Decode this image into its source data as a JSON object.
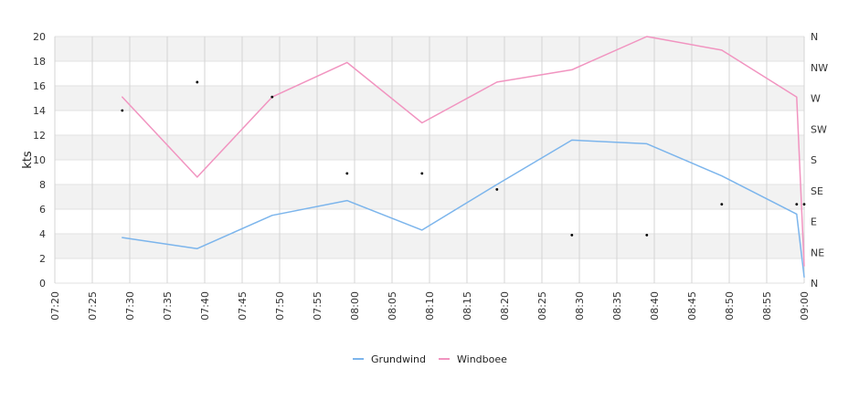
{
  "chart_data": {
    "type": "line",
    "title": "",
    "xlabel": "",
    "ylabel": "kts",
    "ylim": [
      0,
      20
    ],
    "x_ticks": [
      "07:20",
      "07:25",
      "07:30",
      "07:35",
      "07:40",
      "07:45",
      "07:50",
      "07:55",
      "08:00",
      "08:05",
      "08:10",
      "08:15",
      "08:20",
      "08:25",
      "08:30",
      "08:35",
      "08:40",
      "08:45",
      "08:50",
      "08:55",
      "09:00"
    ],
    "y_ticks": [
      0,
      2,
      4,
      6,
      8,
      10,
      12,
      14,
      16,
      18,
      20
    ],
    "direction_ticks": [
      "N",
      "NE",
      "E",
      "SE",
      "S",
      "SW",
      "W",
      "NW",
      "N"
    ],
    "grid": true,
    "legend_position": "bottom",
    "series": [
      {
        "name": "Grundwind",
        "color": "#7cb5ec",
        "x": [
          "07:29",
          "07:39",
          "07:49",
          "07:59",
          "08:09",
          "08:19",
          "08:29",
          "08:39",
          "08:49",
          "08:59",
          "09:00"
        ],
        "values": [
          3.7,
          2.8,
          5.5,
          6.7,
          4.3,
          8.0,
          11.6,
          11.3,
          8.7,
          5.6,
          0.5
        ]
      },
      {
        "name": "Windboee",
        "color": "#f194c0",
        "x": [
          "07:29",
          "07:39",
          "07:49",
          "07:59",
          "08:09",
          "08:19",
          "08:29",
          "08:39",
          "08:49",
          "08:59",
          "09:00"
        ],
        "values": [
          15.1,
          8.6,
          15.1,
          17.9,
          13.0,
          16.3,
          17.3,
          20.0,
          18.9,
          15.1,
          1.4
        ]
      },
      {
        "name": "",
        "type": "scatter",
        "color": "#000000",
        "axis": "direction",
        "x": [
          "07:29",
          "07:39",
          "07:49",
          "07:59",
          "08:09",
          "08:19",
          "08:29",
          "08:39",
          "08:49",
          "08:59",
          "09:00"
        ],
        "values": [
          14,
          16.3,
          15.1,
          8.9,
          8.9,
          7.6,
          3.9,
          3.9,
          6.4,
          6.4,
          6.4
        ]
      }
    ]
  }
}
